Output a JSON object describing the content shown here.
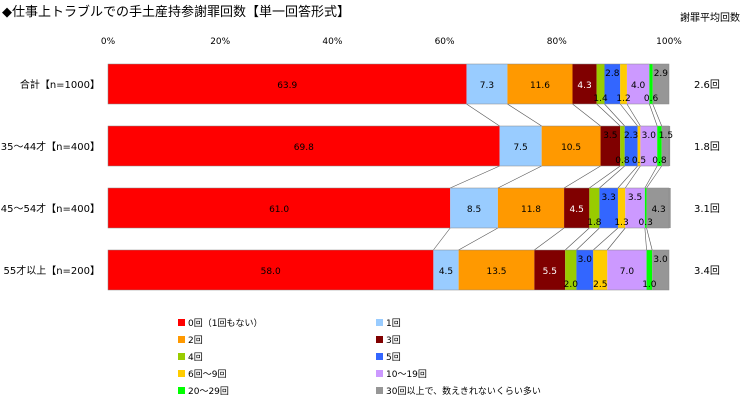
{
  "title": "◆仕事上トラブルでの手土産持参謝罪回数【単一回答形式】",
  "chart_data": {
    "type": "bar",
    "orientation": "horizontal",
    "stacked": true,
    "percent": true,
    "title": "◆仕事上トラブルでの手土産持参謝罪回数【単一回答形式】",
    "xlim": [
      0,
      100
    ],
    "x_ticks": [
      "0%",
      "20%",
      "40%",
      "60%",
      "80%",
      "100%"
    ],
    "grid": false,
    "legend_position": "bottom",
    "right_column_header": "謝罪平均回数",
    "categories": [
      "合計【n=1000】",
      "35～44才【n=400】",
      "45～54才【n=400】",
      "55才以上【n=200】"
    ],
    "right_values": [
      "2.6回",
      "1.8回",
      "3.1回",
      "3.4回"
    ],
    "series": [
      {
        "name": "0回（1回もない）",
        "color": "#ff0000",
        "values": [
          63.9,
          69.8,
          61.0,
          58.0
        ],
        "labels": [
          "63.9",
          "69.8",
          "61.0",
          "58.0"
        ]
      },
      {
        "name": "1回",
        "color": "#99ccff",
        "values": [
          7.3,
          7.5,
          8.5,
          4.5
        ],
        "labels": [
          "7.3",
          "7.5",
          "8.5",
          "4.5"
        ]
      },
      {
        "name": "2回",
        "color": "#ff9900",
        "values": [
          11.6,
          10.5,
          11.8,
          13.5
        ],
        "labels": [
          "11.6",
          "10.5",
          "11.8",
          "13.5"
        ]
      },
      {
        "name": "3回",
        "color": "#800000",
        "values": [
          4.3,
          3.5,
          4.5,
          5.5
        ],
        "labels": [
          "4.3",
          "3.5",
          "4.5",
          "5.5"
        ]
      },
      {
        "name": "4回",
        "color": "#99cc00",
        "values": [
          1.4,
          0.8,
          1.8,
          2.0
        ],
        "labels": [
          "1.4",
          "0.8",
          "1.8",
          "2.0"
        ]
      },
      {
        "name": "5回",
        "color": "#3366ff",
        "values": [
          2.8,
          2.3,
          3.3,
          3.0
        ],
        "labels": [
          "2.8",
          "2.3",
          "3.3",
          "3.0"
        ]
      },
      {
        "name": "6回～9回",
        "color": "#ffcc00",
        "values": [
          1.2,
          0.5,
          1.3,
          2.5
        ],
        "labels": [
          "1.2",
          "0.5",
          "1.3",
          "2.5"
        ]
      },
      {
        "name": "10～19回",
        "color": "#cc99ff",
        "values": [
          4.0,
          3.0,
          3.5,
          7.0
        ],
        "labels": [
          "4.0",
          "3.0",
          "3.5",
          "7.0"
        ]
      },
      {
        "name": "20～29回",
        "color": "#00ff00",
        "values": [
          0.6,
          0.8,
          0.3,
          1.0
        ],
        "labels": [
          "0.6",
          "0.8",
          "0.3",
          "1.0"
        ]
      },
      {
        "name": "30回以上で、数えきれないくらい多い",
        "color": "#969696",
        "values": [
          2.9,
          1.5,
          4.3,
          3.0
        ],
        "labels": [
          "2.9",
          "1.5",
          "4.3",
          "3.0"
        ]
      }
    ]
  }
}
